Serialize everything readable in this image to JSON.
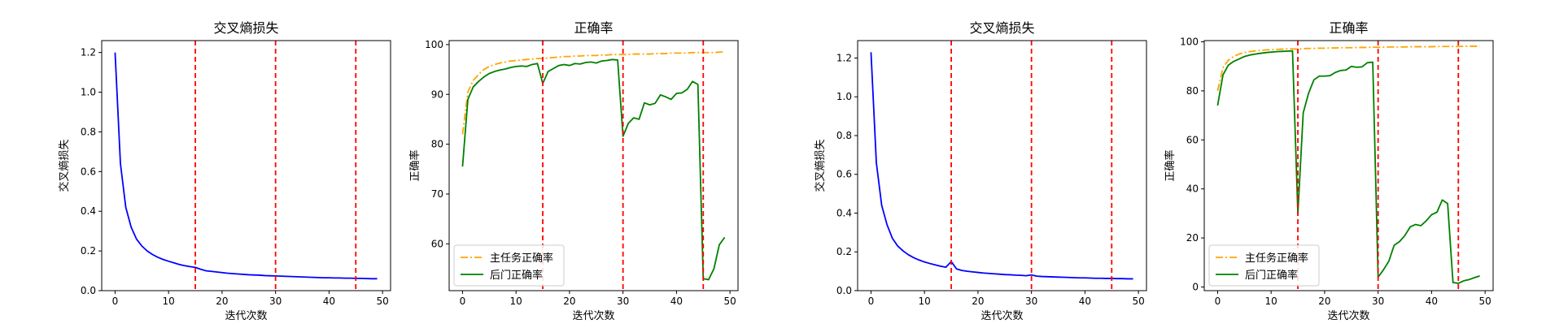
{
  "chart_data": [
    {
      "type": "line",
      "title": "交叉熵损失",
      "xlabel": "迭代次数",
      "ylabel": "交叉熵损失",
      "xlim": [
        -2.5,
        51.5
      ],
      "ylim": [
        0.0,
        1.26
      ],
      "xticks": [
        0,
        10,
        20,
        30,
        40,
        50
      ],
      "yticks": [
        0.0,
        0.2,
        0.4,
        0.6,
        0.8,
        1.0,
        1.2
      ],
      "ytick_labels": [
        "0.0",
        "0.2",
        "0.4",
        "0.6",
        "0.8",
        "1.0",
        "1.2"
      ],
      "vlines": [
        15,
        30,
        45
      ],
      "vline_color": "#ff0000",
      "series": [
        {
          "color": "#0000ff",
          "style": "solid",
          "values": [
            1.2,
            0.64,
            0.42,
            0.32,
            0.26,
            0.225,
            0.2,
            0.182,
            0.168,
            0.157,
            0.148,
            0.14,
            0.132,
            0.126,
            0.121,
            0.117,
            0.108,
            0.1,
            0.097,
            0.094,
            0.091,
            0.088,
            0.086,
            0.084,
            0.082,
            0.08,
            0.079,
            0.078,
            0.076,
            0.075,
            0.074,
            0.073,
            0.072,
            0.071,
            0.07,
            0.069,
            0.068,
            0.067,
            0.066,
            0.065,
            0.065,
            0.064,
            0.064,
            0.063,
            0.063,
            0.062,
            0.062,
            0.061,
            0.06,
            0.06
          ]
        }
      ]
    },
    {
      "type": "line",
      "title": "正确率",
      "xlabel": "迭代次数",
      "ylabel": "正确率",
      "xlim": [
        -2.5,
        51.5
      ],
      "ylim": [
        50.6,
        100.8
      ],
      "xticks": [
        0,
        10,
        20,
        30,
        40,
        50
      ],
      "yticks": [
        60,
        70,
        80,
        90,
        100
      ],
      "ytick_labels": [
        "60",
        "70",
        "80",
        "90",
        "100"
      ],
      "vlines": [
        15,
        30,
        45
      ],
      "vline_color": "#ff0000",
      "legend": "lower-left",
      "series": [
        {
          "name": "主任务正确率",
          "color": "#ffa500",
          "style": "dashdot",
          "values": [
            82.0,
            90.5,
            92.8,
            94.0,
            95.0,
            95.6,
            96.0,
            96.3,
            96.5,
            96.7,
            96.8,
            96.9,
            97.0,
            97.1,
            97.2,
            97.2,
            97.3,
            97.4,
            97.5,
            97.6,
            97.6,
            97.7,
            97.7,
            97.8,
            97.8,
            97.8,
            97.9,
            97.9,
            98.0,
            98.0,
            98.0,
            98.0,
            98.1,
            98.1,
            98.1,
            98.1,
            98.2,
            98.2,
            98.2,
            98.3,
            98.3,
            98.3,
            98.3,
            98.4,
            98.4,
            98.4,
            98.4,
            98.4,
            98.5,
            98.5
          ]
        },
        {
          "name": "后门正确率",
          "color": "#008000",
          "style": "solid",
          "values": [
            75.5,
            89.0,
            91.5,
            92.6,
            93.5,
            94.2,
            94.6,
            94.9,
            95.1,
            95.4,
            95.6,
            95.7,
            95.6,
            96.0,
            96.2,
            92.2,
            94.6,
            95.2,
            95.8,
            96.0,
            95.8,
            96.2,
            96.1,
            96.4,
            96.5,
            96.3,
            96.7,
            96.8,
            97.0,
            96.9,
            81.6,
            84.2,
            85.3,
            85.0,
            88.3,
            87.9,
            88.2,
            89.9,
            89.5,
            89.0,
            90.2,
            90.3,
            91.0,
            92.6,
            92.0,
            53.0,
            52.8,
            55.0,
            59.8,
            61.3
          ]
        }
      ]
    },
    {
      "type": "line",
      "title": "交叉熵损失",
      "xlabel": "迭代次数",
      "ylabel": "交叉熵损失",
      "xlim": [
        -2.5,
        51.5
      ],
      "ylim": [
        0.0,
        1.29
      ],
      "xticks": [
        0,
        10,
        20,
        30,
        40,
        50
      ],
      "yticks": [
        0.0,
        0.2,
        0.4,
        0.6,
        0.8,
        1.0,
        1.2
      ],
      "ytick_labels": [
        "0.0",
        "0.2",
        "0.4",
        "0.6",
        "0.8",
        "1.0",
        "1.2"
      ],
      "vlines": [
        15,
        30,
        45
      ],
      "vline_color": "#ff0000",
      "series": [
        {
          "color": "#0000ff",
          "style": "solid",
          "values": [
            1.23,
            0.66,
            0.44,
            0.34,
            0.27,
            0.23,
            0.205,
            0.185,
            0.17,
            0.158,
            0.148,
            0.14,
            0.133,
            0.126,
            0.121,
            0.15,
            0.112,
            0.104,
            0.1,
            0.097,
            0.094,
            0.091,
            0.089,
            0.087,
            0.085,
            0.083,
            0.082,
            0.08,
            0.079,
            0.077,
            0.081,
            0.075,
            0.073,
            0.072,
            0.071,
            0.07,
            0.069,
            0.068,
            0.067,
            0.066,
            0.066,
            0.065,
            0.064,
            0.064,
            0.063,
            0.063,
            0.062,
            0.062,
            0.061,
            0.061
          ]
        }
      ]
    },
    {
      "type": "line",
      "title": "正确率",
      "xlabel": "迭代次数",
      "ylabel": "正确率",
      "xlim": [
        -2.5,
        51.5
      ],
      "ylim": [
        -1.5,
        100.5
      ],
      "xticks": [
        0,
        10,
        20,
        30,
        40,
        50
      ],
      "yticks": [
        0,
        20,
        40,
        60,
        80,
        100
      ],
      "ytick_labels": [
        "0",
        "20",
        "40",
        "60",
        "80",
        "100"
      ],
      "vlines": [
        15,
        30,
        45
      ],
      "vline_color": "#ff0000",
      "legend": "lower-left",
      "series": [
        {
          "name": "主任务正确率",
          "color": "#ffa500",
          "style": "dashdot",
          "values": [
            80.0,
            89.5,
            92.5,
            94.0,
            95.0,
            95.6,
            96.0,
            96.3,
            96.5,
            96.7,
            96.8,
            96.9,
            97.0,
            97.1,
            97.1,
            97.0,
            97.2,
            97.3,
            97.3,
            97.4,
            97.4,
            97.5,
            97.5,
            97.6,
            97.6,
            97.6,
            97.7,
            97.7,
            97.7,
            97.8,
            97.8,
            97.8,
            97.9,
            97.9,
            97.9,
            97.9,
            98.0,
            98.0,
            98.0,
            98.0,
            98.0,
            98.1,
            98.1,
            98.1,
            98.1,
            98.1,
            98.2,
            98.2,
            98.2,
            98.2
          ]
        },
        {
          "name": "后门正确率",
          "color": "#008000",
          "style": "solid",
          "values": [
            74.0,
            86.5,
            90.5,
            92.0,
            93.0,
            94.0,
            94.6,
            95.0,
            95.3,
            95.6,
            95.8,
            96.0,
            96.1,
            96.2,
            96.3,
            30.0,
            71.0,
            79.0,
            84.5,
            86.0,
            86.0,
            86.2,
            87.5,
            88.3,
            88.5,
            90.0,
            89.6,
            89.8,
            91.5,
            91.7,
            4.0,
            7.0,
            10.5,
            17.0,
            18.5,
            21.0,
            24.5,
            25.5,
            25.0,
            27.0,
            29.5,
            30.5,
            35.5,
            34.0,
            1.8,
            1.5,
            2.5,
            3.0,
            3.8,
            4.5
          ]
        }
      ]
    }
  ]
}
